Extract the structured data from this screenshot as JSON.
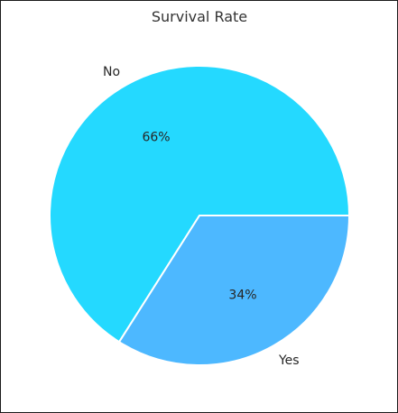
{
  "chart_data": {
    "type": "pie",
    "title": "Survival Rate",
    "categories": [
      "No",
      "Yes"
    ],
    "values": [
      66,
      34
    ],
    "labels_pct": [
      "66%",
      "34%"
    ],
    "colors": [
      "#24d9ff",
      "#4db8ff"
    ],
    "start_angle_deg": 0,
    "direction": "counterclockwise",
    "edge_color": "#ffffff"
  }
}
